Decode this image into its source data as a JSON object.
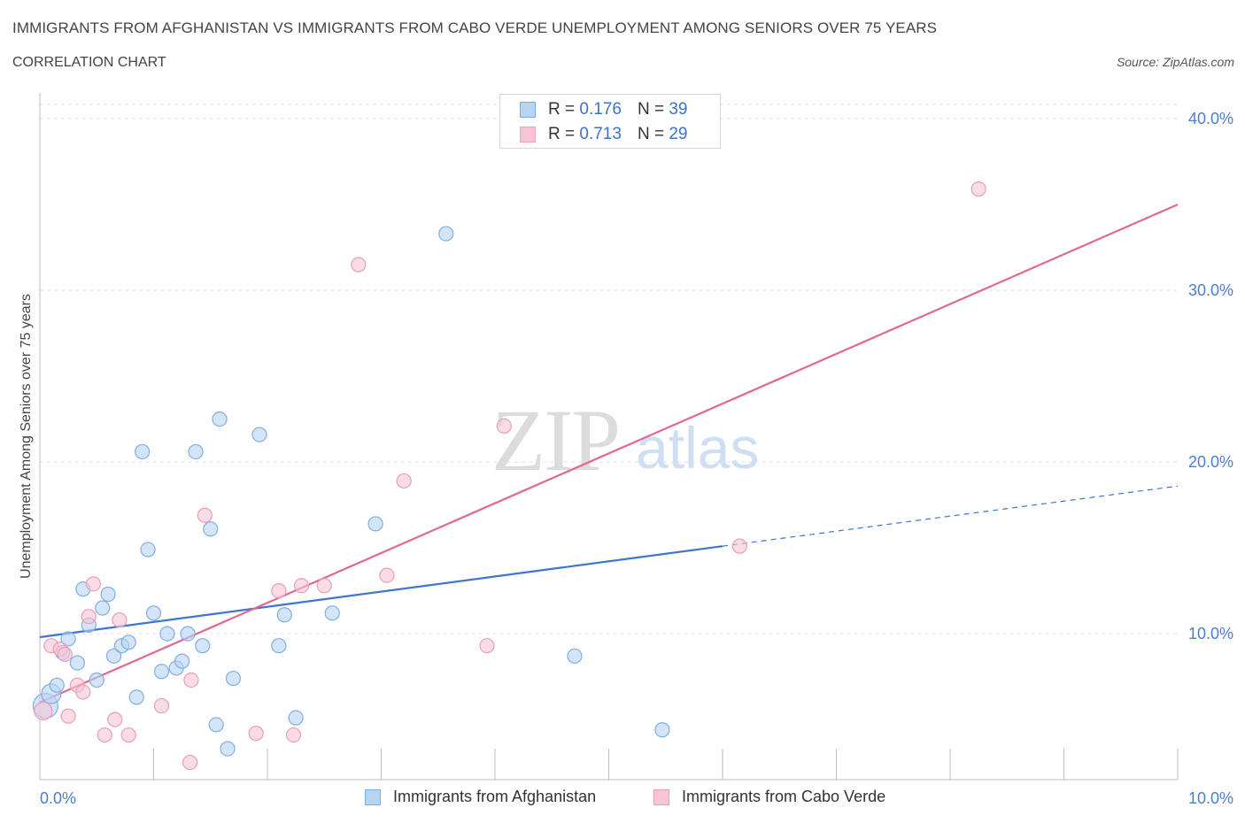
{
  "header": {
    "title": "IMMIGRANTS FROM AFGHANISTAN VS IMMIGRANTS FROM CABO VERDE UNEMPLOYMENT AMONG SENIORS OVER 75 YEARS",
    "subtitle": "CORRELATION CHART",
    "source": "Source: ZipAtlas.com"
  },
  "legend": {
    "r_label": "R =",
    "n_label": "N =",
    "rows": [
      {
        "r": "0.176",
        "n": "39"
      },
      {
        "r": "0.713",
        "n": "29"
      }
    ]
  },
  "watermark": {
    "zip": "ZIP",
    "atlas": "atlas"
  },
  "colors": {
    "afghanistan_fill": "#b9d3f3",
    "afghanistan_stroke": "#7eaee6",
    "afghanistan_line": "#3b77d0",
    "caboverde_fill": "#f7c5d5",
    "caboverde_stroke": "#ec9db8",
    "caboverde_line": "#e06892",
    "tick_text": "#4a7fd0"
  },
  "chart_data": {
    "type": "scatter",
    "title": "IMMIGRANTS FROM AFGHANISTAN VS IMMIGRANTS FROM CABO VERDE UNEMPLOYMENT AMONG SENIORS OVER 75 YEARS",
    "subtitle": "CORRELATION CHART",
    "xlabel": "",
    "ylabel": "Unemployment Among Seniors over 75 years",
    "xlim": [
      0,
      10
    ],
    "ylim": [
      1.5,
      41.5
    ],
    "x_tick_labels": [
      "0.0%",
      "10.0%"
    ],
    "y_ticks": [
      10,
      20,
      30,
      40
    ],
    "y_tick_labels": [
      "10.0%",
      "20.0%",
      "30.0%",
      "40.0%"
    ],
    "grid": true,
    "legend_position": "top-center",
    "series": [
      {
        "name": "Immigrants from Afghanistan",
        "R": 0.176,
        "N": 39,
        "trend": {
          "x0": 0,
          "y0": 9.8,
          "x1": 6.0,
          "y1": 15.1,
          "dashed_to_x": 10.0,
          "dashed_to_y": 18.6
        },
        "points": [
          [
            0.05,
            5.8
          ],
          [
            0.1,
            6.5
          ],
          [
            0.15,
            7.0
          ],
          [
            0.2,
            8.9
          ],
          [
            0.25,
            9.7
          ],
          [
            0.33,
            8.3
          ],
          [
            0.38,
            12.6
          ],
          [
            0.43,
            10.5
          ],
          [
            0.5,
            7.3
          ],
          [
            0.55,
            11.5
          ],
          [
            0.6,
            12.3
          ],
          [
            0.65,
            8.7
          ],
          [
            0.72,
            9.3
          ],
          [
            0.78,
            9.5
          ],
          [
            0.85,
            6.3
          ],
          [
            0.9,
            20.6
          ],
          [
            0.95,
            14.9
          ],
          [
            1.0,
            11.2
          ],
          [
            1.07,
            7.8
          ],
          [
            1.12,
            10.0
          ],
          [
            1.2,
            8.0
          ],
          [
            1.25,
            8.4
          ],
          [
            1.3,
            10.0
          ],
          [
            1.37,
            20.6
          ],
          [
            1.43,
            9.3
          ],
          [
            1.5,
            16.1
          ],
          [
            1.55,
            4.7
          ],
          [
            1.58,
            22.5
          ],
          [
            1.65,
            3.3
          ],
          [
            1.7,
            7.4
          ],
          [
            1.93,
            21.6
          ],
          [
            2.1,
            9.3
          ],
          [
            2.15,
            11.1
          ],
          [
            2.25,
            5.1
          ],
          [
            2.57,
            11.2
          ],
          [
            2.95,
            16.4
          ],
          [
            3.57,
            33.3
          ],
          [
            4.7,
            8.7
          ],
          [
            5.47,
            4.4
          ]
        ]
      },
      {
        "name": "Immigrants from Cabo Verde",
        "R": 0.713,
        "N": 29,
        "trend": {
          "x0": 0,
          "y0": 6.0,
          "x1": 10.0,
          "y1": 35.0
        },
        "points": [
          [
            0.03,
            5.5
          ],
          [
            0.1,
            9.3
          ],
          [
            0.18,
            9.1
          ],
          [
            0.22,
            8.8
          ],
          [
            0.25,
            5.2
          ],
          [
            0.33,
            7.0
          ],
          [
            0.38,
            6.6
          ],
          [
            0.43,
            11.0
          ],
          [
            0.47,
            12.9
          ],
          [
            0.57,
            4.1
          ],
          [
            0.66,
            5.0
          ],
          [
            0.7,
            10.8
          ],
          [
            0.78,
            4.1
          ],
          [
            1.07,
            5.8
          ],
          [
            1.32,
            2.5
          ],
          [
            1.33,
            7.3
          ],
          [
            1.45,
            16.9
          ],
          [
            1.9,
            4.2
          ],
          [
            2.1,
            12.5
          ],
          [
            2.23,
            4.1
          ],
          [
            2.3,
            12.8
          ],
          [
            2.5,
            12.8
          ],
          [
            2.8,
            31.5
          ],
          [
            3.05,
            13.4
          ],
          [
            3.2,
            18.9
          ],
          [
            3.93,
            9.3
          ],
          [
            4.08,
            22.1
          ],
          [
            6.15,
            15.1
          ],
          [
            8.25,
            35.9
          ]
        ]
      }
    ]
  }
}
